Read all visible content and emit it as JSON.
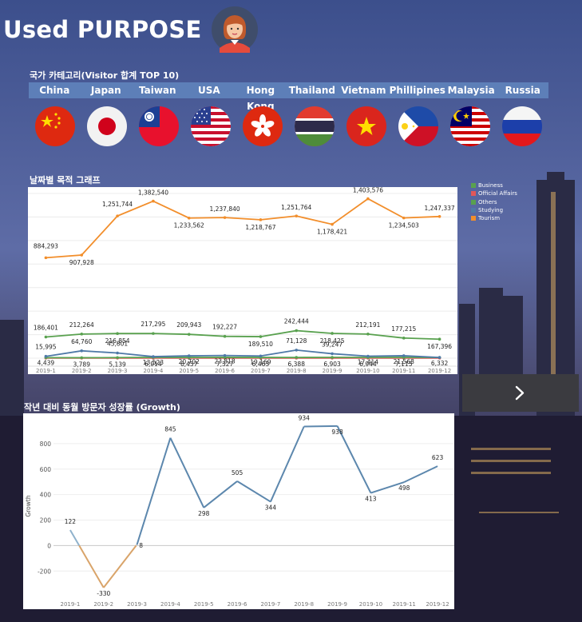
{
  "header": {
    "title": "Used PURPOSE"
  },
  "countries": {
    "label": "국가 카테고리(Visitor 합계 TOP 10)",
    "items": [
      {
        "name": "China",
        "flag": "china-flag-icon"
      },
      {
        "name": "Japan",
        "flag": "japan-flag-icon"
      },
      {
        "name": "Taiwan",
        "flag": "taiwan-flag-icon"
      },
      {
        "name": "USA",
        "flag": "usa-flag-icon"
      },
      {
        "name": "Hong Kong",
        "flag": "hong-kong-flag-icon"
      },
      {
        "name": "Thailand",
        "flag": "thailand-flag-icon"
      },
      {
        "name": "Vietnam",
        "flag": "vietnam-flag-icon"
      },
      {
        "name": "Phillipines",
        "flag": "philippines-flag-icon"
      },
      {
        "name": "Malaysia",
        "flag": "malaysia-flag-icon"
      },
      {
        "name": "Russia",
        "flag": "russia-flag-icon"
      }
    ]
  },
  "chart1_label": "날짜별 목적 그래프",
  "chart2_label": "작년 대비 동월 방문자 성장률 (Growth)",
  "colors": {
    "business": "#59a14f",
    "official": "#e15759",
    "others": "#59a14f",
    "studying": "#4e79a7",
    "tourism": "#f28e2b"
  },
  "chart_data": [
    {
      "type": "line",
      "title": "날짜별 목적 그래프",
      "categories": [
        "2019-1",
        "2019-2",
        "2019-3",
        "2019-4",
        "2019-5",
        "2019-6",
        "2019-7",
        "2019-8",
        "2019-9",
        "2019-10",
        "2019-11",
        "2019-12"
      ],
      "legend": [
        "Business",
        "Official Affairs",
        "Others",
        "Studying",
        "Tourism"
      ],
      "series": [
        {
          "name": "Tourism",
          "values": [
            884293,
            907928,
            1251744,
            1382540,
            1233562,
            1237840,
            1218767,
            1251764,
            1178421,
            1403576,
            1234503,
            1247337
          ],
          "labels": [
            "884,293",
            "907,928",
            "1,251,744",
            "1,382,540",
            "1,233,562",
            "1,237,840",
            "1,218,767",
            "1,251,764",
            "1,178,421",
            "1,403,576",
            "1,234,503",
            "1,247,337"
          ]
        },
        {
          "name": "Others",
          "values": [
            186401,
            212264,
            216854,
            217295,
            209943,
            192227,
            189510,
            242444,
            218425,
            212191,
            177215,
            167396
          ],
          "labels": [
            "186,401",
            "212,264",
            "216,854",
            "217,295",
            "209,943",
            "192,227",
            "189,510",
            "242,444",
            "218,425",
            "212,191",
            "177,215",
            "167,396"
          ]
        },
        {
          "name": "Studying",
          "values": [
            15995,
            64760,
            45801,
            13523,
            20702,
            23818,
            19169,
            71128,
            39247,
            17414,
            21568,
            6332
          ],
          "labels": [
            "15,995",
            "64,760",
            "45,801",
            "13,523",
            "20,702",
            "23,818",
            "19,169",
            "71,128",
            "39,247",
            "17,414",
            "21,568",
            "6,332"
          ]
        },
        {
          "name": "Business",
          "values": [
            4439,
            3789,
            5139,
            6914,
            6457,
            7327,
            6463,
            6388,
            6903,
            6944,
            7115,
            6000
          ],
          "labels": [
            "4,439",
            "3,789",
            "5,139",
            "6,914",
            "6,457",
            "7,327",
            "6,463",
            "6,388",
            "6,903",
            "6,944",
            "7,115",
            ""
          ]
        },
        {
          "name": "Official Affairs",
          "values": [
            900,
            900,
            900,
            900,
            900,
            900,
            900,
            900,
            900,
            900,
            900,
            900
          ],
          "labels": []
        }
      ],
      "ylim": [
        0,
        1450000
      ]
    },
    {
      "type": "line",
      "title": "작년 대비 동월 방문자 성장률 (Growth)",
      "ylabel": "Growth",
      "categories": [
        "2019-1",
        "2019-2",
        "2019-3",
        "2019-4",
        "2019-5",
        "2019-6",
        "2019-7",
        "2019-8",
        "2019-9",
        "2019-10",
        "2019-11",
        "2019-12"
      ],
      "values": [
        122,
        -330,
        8,
        845,
        298,
        505,
        344,
        934,
        938,
        413,
        498,
        623
      ],
      "labels": [
        "122",
        "-330",
        "8",
        "845",
        "298",
        "505",
        "344",
        "934",
        "938",
        "413",
        "498",
        "623"
      ],
      "yticks": [
        800,
        600,
        400,
        200,
        0,
        -200
      ],
      "ytick_labels": [
        "800",
        "600",
        "400",
        "200",
        "0",
        "-200"
      ],
      "ylim": [
        -380,
        1000
      ]
    }
  ]
}
